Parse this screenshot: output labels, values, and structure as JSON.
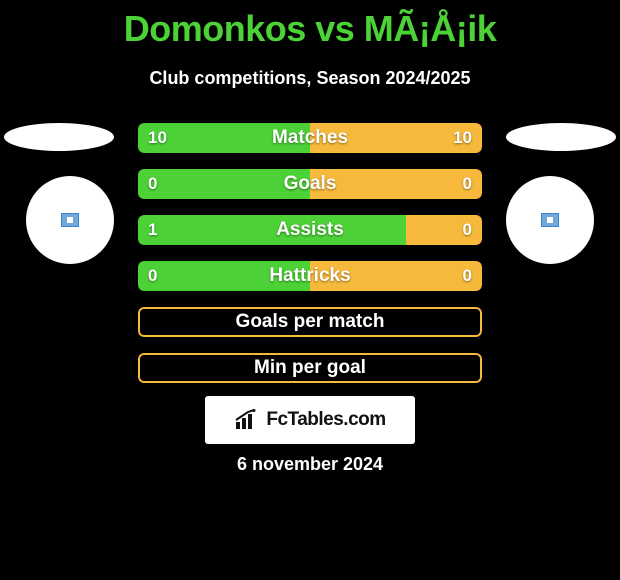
{
  "title": "Domonkos vs MÃ¡Å¡ik",
  "subtitle": "Club competitions, Season 2024/2025",
  "date": "6 november 2024",
  "footer_text": "FcTables.com",
  "colors": {
    "background": "#000000",
    "title": "#4cd137",
    "left_fill": "#4cd137",
    "right_fill": "#f6b93b",
    "neutral_border": "#f6b93b",
    "text": "#ffffff",
    "footer_bg": "#ffffff",
    "footer_text": "#111111"
  },
  "stats": [
    {
      "label": "Matches",
      "left_value": 10,
      "right_value": 10,
      "left_pct": 50,
      "right_pct": 50,
      "show_values": true
    },
    {
      "label": "Goals",
      "left_value": 0,
      "right_value": 0,
      "left_pct": 50,
      "right_pct": 50,
      "show_values": true
    },
    {
      "label": "Assists",
      "left_value": 1,
      "right_value": 0,
      "left_pct": 78,
      "right_pct": 22,
      "show_values": true
    },
    {
      "label": "Hattricks",
      "left_value": 0,
      "right_value": 0,
      "left_pct": 50,
      "right_pct": 50,
      "show_values": true
    },
    {
      "label": "Goals per match",
      "left_value": null,
      "right_value": null,
      "left_pct": 0,
      "right_pct": 0,
      "show_values": false
    },
    {
      "label": "Min per goal",
      "left_value": null,
      "right_value": null,
      "left_pct": 0,
      "right_pct": 0,
      "show_values": false
    }
  ]
}
